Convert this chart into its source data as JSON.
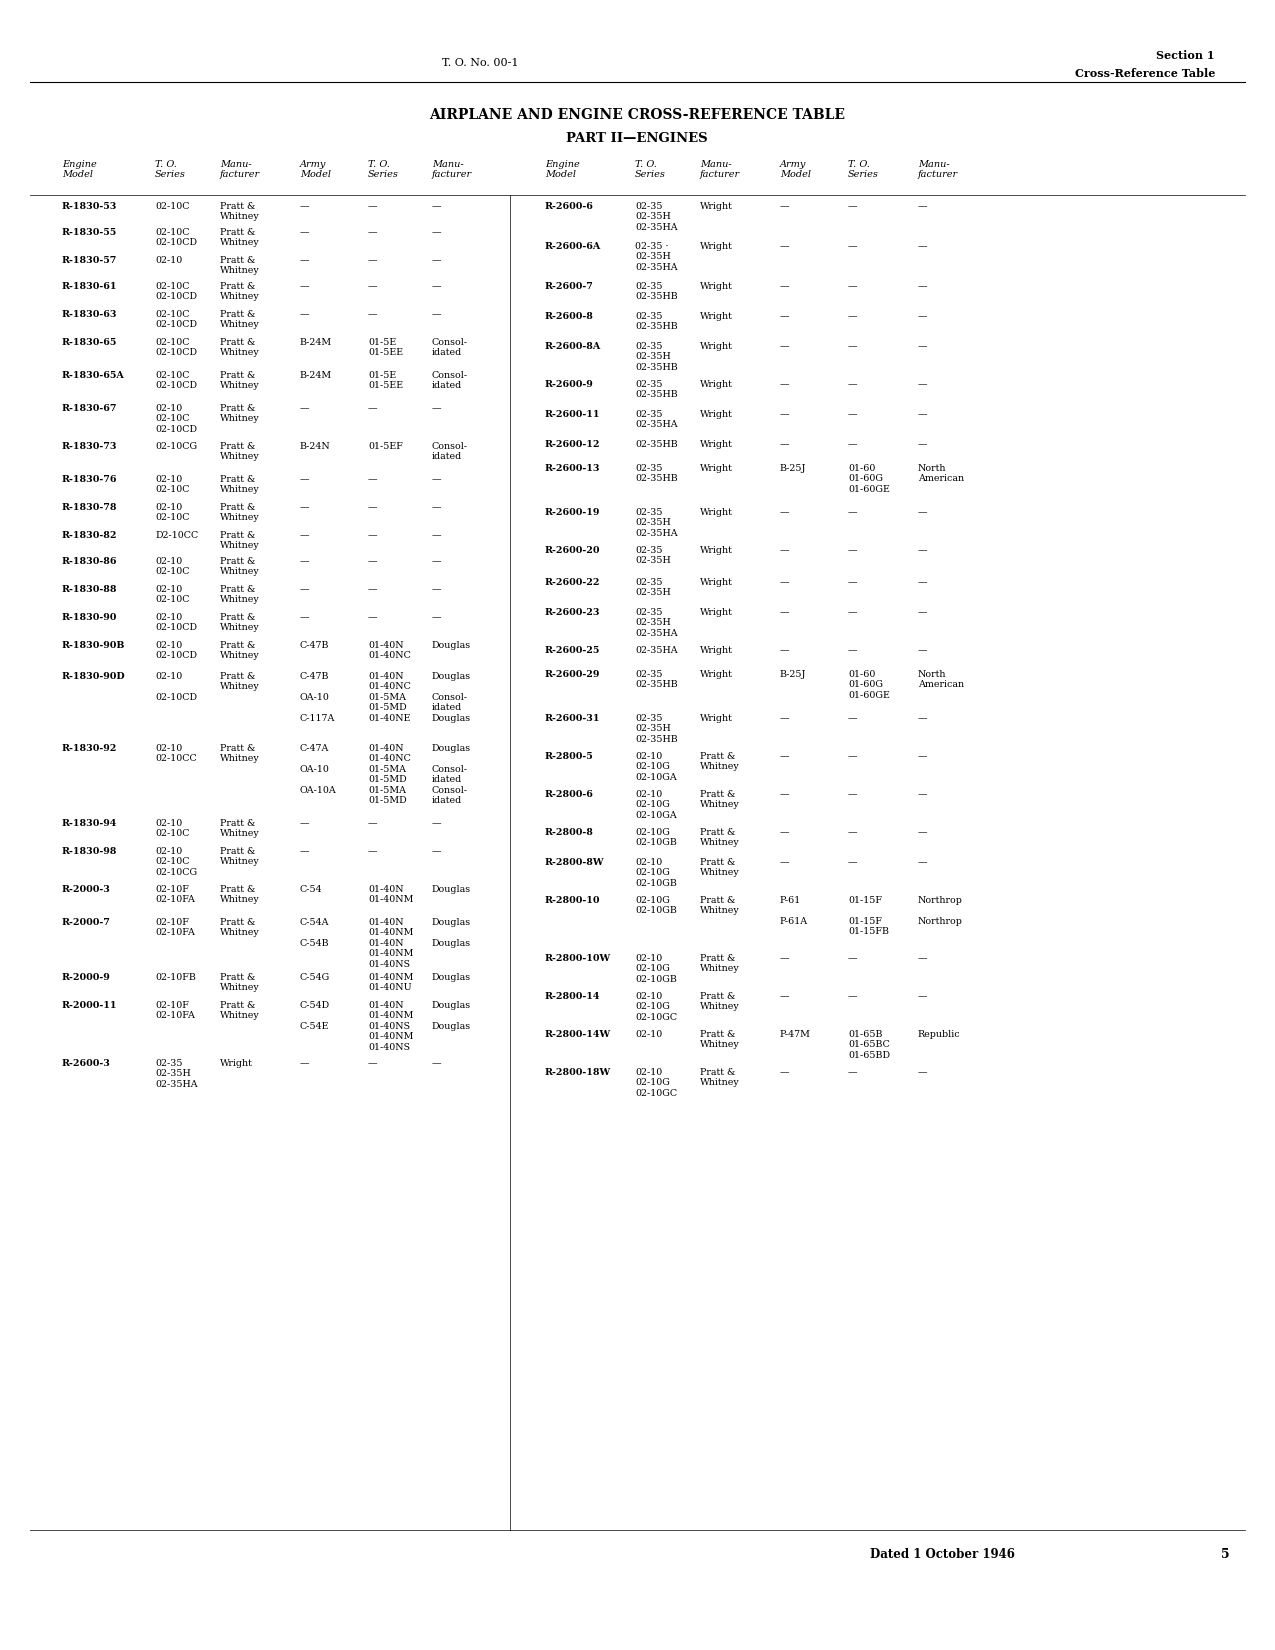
{
  "page_title_left": "T. O. No. 00-1",
  "page_title_right_line1": "Section 1",
  "page_title_right_line2": "Cross-Reference Table",
  "main_title_line1": "AIRPLANE AND ENGINE CROSS-REFERENCE TABLE",
  "main_title_line2": "PART II—ENGINES",
  "footer_text": "Dated 1 October 1946",
  "page_number": "5",
  "left_data": [
    [
      "R-1830-53",
      "02-10C",
      "Pratt &\nWhitney",
      "—",
      "—",
      "—"
    ],
    [
      "R-1830-55",
      "02-10C\n02-10CD",
      "Pratt &\nWhitney",
      "—",
      "—",
      "—"
    ],
    [
      "R-1830-57",
      "02-10",
      "Pratt &\nWhitney",
      "—",
      "—",
      "—"
    ],
    [
      "R-1830-61",
      "02-10C\n02-10CD",
      "Pratt &\nWhitney",
      "—",
      "—",
      "—"
    ],
    [
      "R-1830-63",
      "02-10C\n02-10CD",
      "Pratt &\nWhitney",
      "—",
      "—",
      "—"
    ],
    [
      "R-1830-65",
      "02-10C\n02-10CD",
      "Pratt &\nWhitney",
      "B-24M",
      "01-5E\n01-5EE",
      "Consol-\nidated"
    ],
    [
      "R-1830-65A",
      "02-10C\n02-10CD",
      "Pratt &\nWhitney",
      "B-24M",
      "01-5E\n01-5EE",
      "Consol-\nidated"
    ],
    [
      "R-1830-67",
      "02-10\n02-10C\n02-10CD",
      "Pratt &\nWhitney",
      "—",
      "—",
      "—"
    ],
    [
      "R-1830-73",
      "02-10CG",
      "Pratt &\nWhitney",
      "B-24N",
      "01-5EF",
      "Consol-\nidated"
    ],
    [
      "R-1830-76",
      "02-10\n02-10C",
      "Pratt &\nWhitney",
      "—",
      "—",
      "—"
    ],
    [
      "R-1830-78",
      "02-10\n02-10C",
      "Pratt &\nWhitney",
      "—",
      "—",
      "—"
    ],
    [
      "R-1830-82",
      "D2-10CC",
      "Pratt &\nWhitney",
      "—",
      "—",
      "—"
    ],
    [
      "R-1830-86",
      "02-10\n02-10C",
      "Pratt &\nWhitney",
      "—",
      "—",
      "—"
    ],
    [
      "R-1830-88",
      "02-10\n02-10C",
      "Pratt &\nWhitney",
      "—",
      "—",
      "—"
    ],
    [
      "R-1830-90",
      "02-10\n02-10CD",
      "Pratt &\nWhitney",
      "—",
      "—",
      "—"
    ],
    [
      "R-1830-90B",
      "02-10\n02-10CD",
      "Pratt &\nWhitney",
      "C-47B",
      "01-40N\n01-40NC",
      "Douglas"
    ],
    [
      "R-1830-90D",
      "02-10\n\n02-10CD",
      "Pratt &\nWhitney",
      "C-47B\n\nOA-10\n\nC-117A",
      "01-40N\n01-40NC\n01-5MA\n01-5MD\n01-40NE",
      "Douglas\n\nConsol-\nidated\nDouglas"
    ],
    [
      "R-1830-92",
      "02-10\n02-10CC",
      "Pratt &\nWhitney",
      "C-47A\n\nOA-10\n\nOA-10A",
      "01-40N\n01-40NC\n01-5MA\n01-5MD\n01-5MA\n01-5MD",
      "Douglas\n\nConsol-\nidated\nConsol-\nidated"
    ],
    [
      "R-1830-94",
      "02-10\n02-10C",
      "Pratt &\nWhitney",
      "—",
      "—",
      "—"
    ],
    [
      "R-1830-98",
      "02-10\n02-10C\n02-10CG",
      "Pratt &\nWhitney",
      "—",
      "—",
      "—"
    ],
    [
      "R-2000-3",
      "02-10F\n02-10FA",
      "Pratt &\nWhitney",
      "C-54",
      "01-40N\n01-40NM",
      "Douglas"
    ],
    [
      "R-2000-7",
      "02-10F\n02-10FA",
      "Pratt &\nWhitney",
      "C-54A\n\nC-54B",
      "01-40N\n01-40NM\n01-40N\n01-40NM\n01-40NS",
      "Douglas\n\nDouglas"
    ],
    [
      "R-2000-9",
      "02-10FB",
      "Pratt &\nWhitney",
      "C-54G",
      "01-40NM\n01-40NU",
      "Douglas"
    ],
    [
      "R-2000-11",
      "02-10F\n02-10FA",
      "Pratt &\nWhitney",
      "C-54D\n\nC-54E",
      "01-40N\n01-40NM\n01-40NS\n01-40NM\n01-40NS",
      "Douglas\n\nDouglas"
    ],
    [
      "R-2600-3",
      "02-35\n02-35H\n02-35HA",
      "Wright",
      "—",
      "—",
      "—"
    ]
  ],
  "right_data": [
    [
      "R-2600-6",
      "02-35\n02-35H\n02-35HA",
      "Wright",
      "—",
      "—",
      "—"
    ],
    [
      "R-2600-6A",
      "02-35 ·\n02-35H\n02-35HA",
      "Wright",
      "—",
      "—",
      "—"
    ],
    [
      "R-2600-7",
      "02-35\n02-35HB",
      "Wright",
      "—",
      "—",
      "—"
    ],
    [
      "R-2600-8",
      "02-35\n02-35HB",
      "Wright",
      "—",
      "—",
      "—"
    ],
    [
      "R-2600-8A",
      "02-35\n02-35H\n02-35HB",
      "Wright",
      "—",
      "—",
      "—"
    ],
    [
      "R-2600-9",
      "02-35\n02-35HB",
      "Wright",
      "—",
      "—",
      "—"
    ],
    [
      "R-2600-11",
      "02-35\n02-35HA",
      "Wright",
      "—",
      "—",
      "—"
    ],
    [
      "R-2600-12",
      "02-35HB",
      "Wright",
      "—",
      "—",
      "—"
    ],
    [
      "R-2600-13",
      "02-35\n02-35HB",
      "Wright",
      "B-25J",
      "01-60\n01-60G\n01-60GE",
      "North\nAmerican"
    ],
    [
      "R-2600-19",
      "02-35\n02-35H\n02-35HA",
      "Wright",
      "—",
      "—",
      "—"
    ],
    [
      "R-2600-20",
      "02-35\n02-35H",
      "Wright",
      "—",
      "—",
      "—"
    ],
    [
      "R-2600-22",
      "02-35\n02-35H",
      "Wright",
      "—",
      "—",
      "—"
    ],
    [
      "R-2600-23",
      "02-35\n02-35H\n02-35HA",
      "Wright",
      "—",
      "—",
      "—"
    ],
    [
      "R-2600-25",
      "02-35HA",
      "Wright",
      "—",
      "—",
      "—"
    ],
    [
      "R-2600-29",
      "02-35\n02-35HB",
      "Wright",
      "B-25J",
      "01-60\n01-60G\n01-60GE",
      "North\nAmerican"
    ],
    [
      "R-2600-31",
      "02-35\n02-35H\n02-35HB",
      "Wright",
      "—",
      "—",
      "—"
    ],
    [
      "R-2800-5",
      "02-10\n02-10G\n02-10GA",
      "Pratt &\nWhitney",
      "—",
      "—",
      "—"
    ],
    [
      "R-2800-6",
      "02-10\n02-10G\n02-10GA",
      "Pratt &\nWhitney",
      "—",
      "—",
      "—"
    ],
    [
      "R-2800-8",
      "02-10G\n02-10GB",
      "Pratt &\nWhitney",
      "—",
      "—",
      "—"
    ],
    [
      "R-2800-8W",
      "02-10\n02-10G\n02-10GB",
      "Pratt &\nWhitney",
      "—",
      "—",
      "—"
    ],
    [
      "R-2800-10",
      "02-10G\n02-10GB",
      "Pratt &\nWhitney",
      "P-61\n\nP-61A",
      "01-15F\n\n01-15F\n01-15FB",
      "Northrop\n\nNorthrop"
    ],
    [
      "R-2800-10W",
      "02-10\n02-10G\n02-10GB",
      "Pratt &\nWhitney",
      "—",
      "—",
      "—"
    ],
    [
      "R-2800-14",
      "02-10\n02-10G\n02-10GC",
      "Pratt &\nWhitney",
      "—",
      "—",
      "—"
    ],
    [
      "R-2800-14W",
      "02-10",
      "Pratt &\nWhitney",
      "P-47M",
      "01-65B\n01-65BC\n01-65BD",
      "Republic"
    ],
    [
      "R-2800-18W",
      "02-10\n02-10G\n02-10GC",
      "Pratt &\nWhitney",
      "—",
      "—",
      "—"
    ]
  ]
}
